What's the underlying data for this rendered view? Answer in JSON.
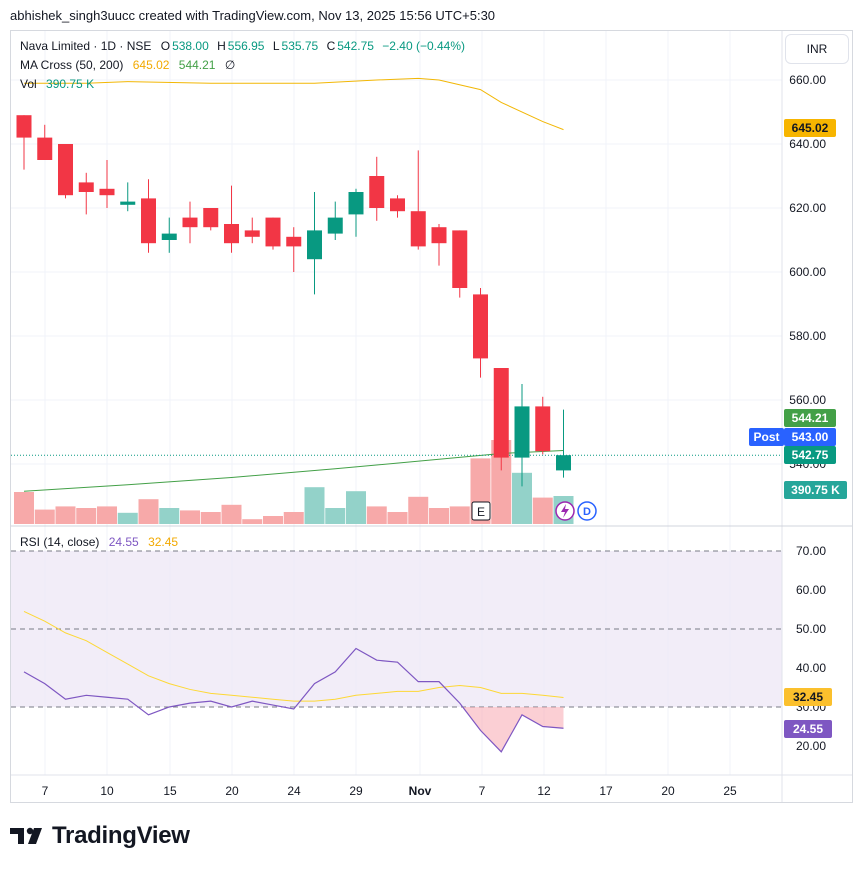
{
  "header": {
    "attribution": "abhishek_singh3uucc created with TradingView.com, Nov 13, 2025 15:56 UTC+5:30"
  },
  "legend": {
    "symbol": "Nava Limited · 1D · NSE",
    "open_label": "O",
    "open_value": "538.00",
    "high_label": "H",
    "high_value": "556.95",
    "low_label": "L",
    "low_value": "535.75",
    "close_label": "C",
    "close_value": "542.75",
    "change": "−2.40 (−0.44%)",
    "ma_label": "MA Cross (50, 200)",
    "ma_fast": "645.02",
    "ma_slow": "544.21",
    "ma_empty": "∅",
    "vol_label": "Vol",
    "vol_value": "390.75 K",
    "rsi_label": "RSI (14, close)",
    "rsi_value": "24.55",
    "rsi_ma_value": "32.45"
  },
  "currency_button": "INR",
  "badges": {
    "ma_fast": "645.02",
    "ma_slow": "544.21",
    "post_label": "Post",
    "post_price": "543.00",
    "last_price": "542.75",
    "volume": "390.75 K",
    "rsi_ma": "32.45",
    "rsi": "24.55"
  },
  "markers": {
    "earnings": "E",
    "dividend": "D"
  },
  "footer": {
    "brand": "TradingView"
  },
  "colors": {
    "up": "#089981",
    "down": "#f23645",
    "ma_fast": "#f2b705",
    "ma_slow": "#43a047",
    "rsi": "#7e57c2",
    "rsi_ma": "#fdd835",
    "post": "#2962ff"
  },
  "chart_data": {
    "type": "candlestick",
    "price_axis": {
      "ticks": [
        "660.00",
        "640.00",
        "620.00",
        "600.00",
        "580.00",
        "560.00",
        "540.00"
      ],
      "range": [
        529,
        672
      ]
    },
    "x_ticks": [
      "7",
      "10",
      "15",
      "20",
      "24",
      "29",
      "Nov",
      "7",
      "10",
      "12",
      "17",
      "20",
      "25"
    ],
    "candles": [
      {
        "o": 649,
        "h": 649,
        "l": 632,
        "c": 642
      },
      {
        "o": 642,
        "h": 646,
        "l": 635,
        "c": 635
      },
      {
        "o": 640,
        "h": 640,
        "l": 623,
        "c": 624
      },
      {
        "o": 628,
        "h": 631,
        "l": 618,
        "c": 625
      },
      {
        "o": 626,
        "h": 635,
        "l": 620,
        "c": 624
      },
      {
        "o": 621,
        "h": 628,
        "l": 619,
        "c": 622
      },
      {
        "o": 623,
        "h": 629,
        "l": 606,
        "c": 609
      },
      {
        "o": 610,
        "h": 617,
        "l": 606,
        "c": 612
      },
      {
        "o": 617,
        "h": 622,
        "l": 609,
        "c": 614
      },
      {
        "o": 620,
        "h": 620,
        "l": 613,
        "c": 614
      },
      {
        "o": 615,
        "h": 627,
        "l": 606,
        "c": 609
      },
      {
        "o": 613,
        "h": 617,
        "l": 609,
        "c": 611
      },
      {
        "o": 617,
        "h": 617,
        "l": 607,
        "c": 608
      },
      {
        "o": 611,
        "h": 614,
        "l": 600,
        "c": 608
      },
      {
        "o": 604,
        "h": 625,
        "l": 593,
        "c": 613
      },
      {
        "o": 612,
        "h": 622,
        "l": 610,
        "c": 617
      },
      {
        "o": 618,
        "h": 626,
        "l": 611,
        "c": 625
      },
      {
        "o": 630,
        "h": 636,
        "l": 616,
        "c": 620
      },
      {
        "o": 623,
        "h": 624,
        "l": 617,
        "c": 619
      },
      {
        "o": 619,
        "h": 638,
        "l": 607,
        "c": 608
      },
      {
        "o": 614,
        "h": 615,
        "l": 602,
        "c": 609
      },
      {
        "o": 613,
        "h": 613,
        "l": 592,
        "c": 595
      },
      {
        "o": 593,
        "h": 595,
        "l": 567,
        "c": 573
      },
      {
        "o": 570,
        "h": 570,
        "l": 538,
        "c": 542
      },
      {
        "o": 542,
        "h": 565,
        "l": 533,
        "c": 558
      },
      {
        "o": 558,
        "h": 561,
        "l": 543,
        "c": 544
      },
      {
        "o": 538,
        "h": 557,
        "l": 535.75,
        "c": 542.75
      }
    ],
    "volume": {
      "values": [
        40,
        18,
        22,
        20,
        22,
        14,
        31,
        20,
        17,
        15,
        24,
        6,
        10,
        15,
        46,
        20,
        41,
        22,
        15,
        34,
        20,
        22,
        82,
        105,
        64,
        33,
        35
      ],
      "colors": [
        "d",
        "d",
        "d",
        "d",
        "d",
        "u",
        "d",
        "u",
        "d",
        "d",
        "d",
        "d",
        "d",
        "d",
        "u",
        "u",
        "u",
        "d",
        "d",
        "d",
        "d",
        "d",
        "d",
        "d",
        "u",
        "d",
        "u"
      ],
      "range": [
        0,
        190
      ]
    },
    "ma_fast": [
      [
        0,
        659
      ],
      [
        3,
        659
      ],
      [
        5,
        659.5
      ],
      [
        9,
        659
      ],
      [
        14,
        659
      ],
      [
        17,
        660
      ],
      [
        19,
        660.5
      ],
      [
        20,
        660
      ],
      [
        22,
        657
      ],
      [
        23,
        653
      ],
      [
        25,
        647
      ],
      [
        26,
        644.5
      ]
    ],
    "ma_slow": [
      [
        0,
        531.5
      ],
      [
        5,
        533.5
      ],
      [
        10,
        535.8
      ],
      [
        15,
        538.5
      ],
      [
        20,
        541.5
      ],
      [
        23,
        543.3
      ],
      [
        26,
        544.2
      ]
    ],
    "rsi_axis": {
      "ticks": [
        "70.00",
        "60.00",
        "50.00",
        "40.00",
        "30.00",
        "20.00"
      ],
      "range": [
        13,
        72
      ],
      "band": [
        30,
        70
      ],
      "mid": 50
    },
    "rsi": [
      39,
      36,
      32,
      33,
      32.5,
      32,
      28,
      30,
      31,
      31.5,
      30,
      31.5,
      30.5,
      29.5,
      36,
      39,
      45,
      42,
      41.5,
      36.5,
      36.5,
      31,
      24,
      18.5,
      28,
      25,
      24.55
    ],
    "rsi_ma": [
      54.5,
      52,
      49,
      47,
      44,
      41,
      38,
      36,
      34.5,
      33.5,
      33,
      32.5,
      32,
      31.5,
      31.5,
      32,
      33,
      33.5,
      34,
      34,
      35,
      35.5,
      35,
      33.5,
      33.5,
      33,
      32.45
    ]
  }
}
